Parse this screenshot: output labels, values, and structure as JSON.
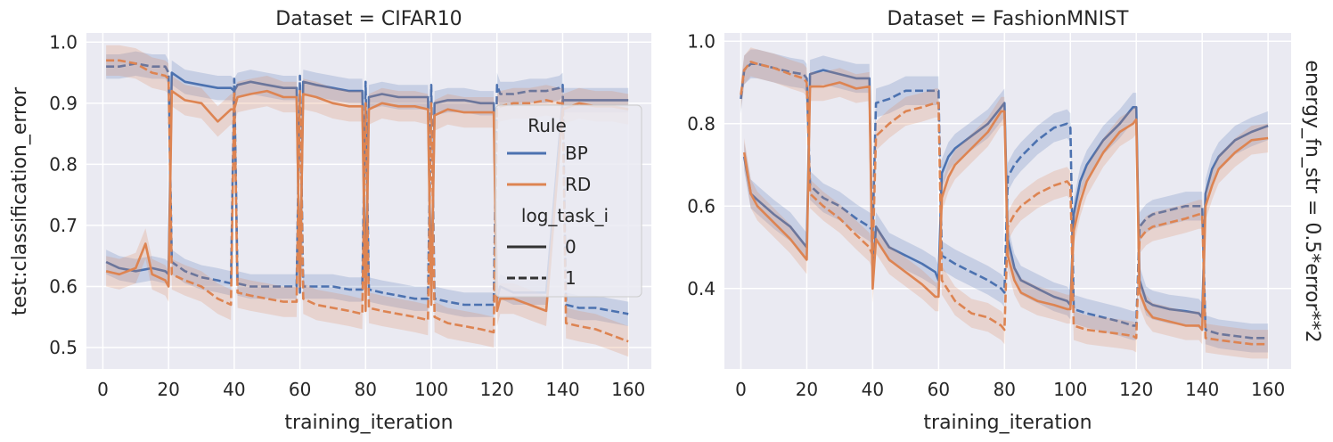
{
  "figure": {
    "ylabel": "test:classification_error",
    "row_label": "energy_fn_str = 0.5*error**2",
    "colors": {
      "BP": "#4c72b0",
      "RD": "#dd8452",
      "background": "#eaeaf2",
      "grid": "#ffffff"
    }
  },
  "legend": {
    "hue_title": "Rule",
    "hue_items": [
      "BP",
      "RD"
    ],
    "style_title": "log_task_i",
    "style_items": [
      "0",
      "1"
    ]
  },
  "chart_data": [
    {
      "type": "line",
      "title": "Dataset = CIFAR10",
      "xlabel": "training_iteration",
      "ylabel": "test:classification_error",
      "xlim": [
        -5,
        167
      ],
      "ylim": [
        0.465,
        1.015
      ],
      "xticks": [
        0,
        20,
        40,
        60,
        80,
        100,
        120,
        140,
        160
      ],
      "yticks": [
        0.5,
        0.6,
        0.7,
        0.8,
        0.9,
        1.0
      ],
      "ytick_labels": [
        "0.5",
        "0.6",
        "0.7",
        "0.8",
        "0.9",
        "1.0"
      ],
      "grid": true,
      "legend_position": "center-right",
      "series": [
        {
          "rule": "BP",
          "log_task_i": "0",
          "x": [
            1,
            5,
            10,
            15,
            19,
            20,
            21,
            25,
            30,
            35,
            39,
            40,
            41,
            45,
            50,
            55,
            59,
            60,
            61,
            65,
            70,
            75,
            79,
            80,
            81,
            85,
            90,
            95,
            99,
            100,
            101,
            105,
            110,
            115,
            119,
            120,
            121,
            125,
            130,
            135,
            140,
            145,
            150,
            155,
            160
          ],
          "y": [
            0.64,
            0.63,
            0.625,
            0.63,
            0.625,
            0.62,
            0.95,
            0.935,
            0.93,
            0.925,
            0.925,
            0.92,
            0.93,
            0.935,
            0.93,
            0.925,
            0.925,
            0.59,
            0.935,
            0.93,
            0.925,
            0.92,
            0.92,
            0.59,
            0.91,
            0.915,
            0.91,
            0.91,
            0.91,
            0.58,
            0.9,
            0.905,
            0.905,
            0.9,
            0.9,
            0.58,
            0.6,
            0.59,
            0.59,
            0.59,
            0.905,
            0.905,
            0.905,
            0.905,
            0.905
          ],
          "band": 0.02
        },
        {
          "rule": "BP",
          "log_task_i": "1",
          "x": [
            1,
            5,
            10,
            15,
            19,
            20,
            21,
            25,
            30,
            35,
            39,
            40,
            41,
            45,
            50,
            55,
            59,
            60,
            61,
            65,
            70,
            75,
            79,
            80,
            81,
            85,
            90,
            95,
            99,
            100,
            101,
            105,
            110,
            115,
            119,
            120,
            121,
            125,
            130,
            135,
            139,
            140,
            141,
            145,
            150,
            155,
            160
          ],
          "y": [
            0.96,
            0.96,
            0.965,
            0.96,
            0.96,
            0.95,
            0.64,
            0.625,
            0.615,
            0.61,
            0.605,
            0.94,
            0.605,
            0.6,
            0.6,
            0.6,
            0.6,
            0.945,
            0.6,
            0.6,
            0.6,
            0.595,
            0.595,
            0.935,
            0.595,
            0.59,
            0.585,
            0.58,
            0.58,
            0.93,
            0.58,
            0.575,
            0.57,
            0.57,
            0.57,
            0.93,
            0.915,
            0.915,
            0.92,
            0.92,
            0.925,
            0.93,
            0.57,
            0.565,
            0.565,
            0.56,
            0.555
          ],
          "band": 0.02
        },
        {
          "rule": "RD",
          "log_task_i": "0",
          "x": [
            1,
            5,
            10,
            13,
            15,
            19,
            20,
            21,
            25,
            30,
            35,
            39,
            40,
            41,
            45,
            50,
            55,
            59,
            60,
            61,
            65,
            70,
            75,
            79,
            80,
            81,
            85,
            90,
            95,
            99,
            100,
            101,
            105,
            110,
            115,
            119,
            120,
            121,
            125,
            130,
            135,
            140,
            145,
            150,
            155,
            160
          ],
          "y": [
            0.625,
            0.62,
            0.63,
            0.67,
            0.62,
            0.61,
            0.6,
            0.92,
            0.905,
            0.9,
            0.87,
            0.89,
            0.89,
            0.91,
            0.915,
            0.92,
            0.91,
            0.91,
            0.6,
            0.915,
            0.91,
            0.9,
            0.895,
            0.895,
            0.56,
            0.89,
            0.9,
            0.895,
            0.895,
            0.89,
            0.57,
            0.88,
            0.89,
            0.885,
            0.885,
            0.885,
            0.56,
            0.58,
            0.58,
            0.57,
            0.56,
            0.89,
            0.9,
            0.895,
            0.895,
            0.89
          ],
          "band": 0.025
        },
        {
          "rule": "RD",
          "log_task_i": "1",
          "x": [
            1,
            5,
            10,
            15,
            19,
            20,
            21,
            25,
            30,
            35,
            39,
            40,
            41,
            45,
            50,
            55,
            59,
            60,
            61,
            65,
            70,
            75,
            79,
            80,
            81,
            85,
            90,
            95,
            99,
            100,
            101,
            105,
            110,
            115,
            119,
            120,
            121,
            125,
            130,
            135,
            139,
            140,
            141,
            145,
            150,
            155,
            160
          ],
          "y": [
            0.97,
            0.97,
            0.965,
            0.95,
            0.945,
            0.94,
            0.62,
            0.61,
            0.6,
            0.58,
            0.57,
            0.92,
            0.59,
            0.585,
            0.58,
            0.575,
            0.575,
            0.92,
            0.58,
            0.57,
            0.565,
            0.56,
            0.555,
            0.9,
            0.565,
            0.56,
            0.555,
            0.55,
            0.545,
            0.9,
            0.55,
            0.54,
            0.535,
            0.53,
            0.525,
            0.89,
            0.895,
            0.9,
            0.9,
            0.905,
            0.9,
            0.9,
            0.54,
            0.535,
            0.53,
            0.52,
            0.51
          ],
          "band": 0.025
        }
      ]
    },
    {
      "type": "line",
      "title": "Dataset = FashionMNIST",
      "xlabel": "training_iteration",
      "ylabel": "",
      "xlim": [
        -5,
        167
      ],
      "ylim": [
        0.205,
        1.02
      ],
      "xticks": [
        0,
        20,
        40,
        60,
        80,
        100,
        120,
        140,
        160
      ],
      "yticks": [
        0.4,
        0.6,
        0.8,
        1.0
      ],
      "ytick_labels": [
        "0.4",
        "0.6",
        "0.8",
        "1.0"
      ],
      "grid": true,
      "series": [
        {
          "rule": "BP",
          "log_task_i": "0",
          "x": [
            1,
            3,
            5,
            10,
            15,
            19,
            20,
            21,
            25,
            30,
            35,
            39,
            40,
            41,
            45,
            50,
            55,
            59,
            60,
            61,
            63,
            65,
            70,
            75,
            79,
            80,
            81,
            83,
            85,
            90,
            95,
            99,
            100,
            101,
            103,
            105,
            110,
            115,
            119,
            120,
            121,
            123,
            125,
            130,
            135,
            139,
            140,
            141,
            143,
            145,
            150,
            155,
            160
          ],
          "y": [
            0.72,
            0.63,
            0.615,
            0.58,
            0.55,
            0.51,
            0.5,
            0.92,
            0.93,
            0.92,
            0.91,
            0.91,
            0.43,
            0.55,
            0.5,
            0.48,
            0.46,
            0.44,
            0.42,
            0.68,
            0.72,
            0.74,
            0.77,
            0.8,
            0.84,
            0.85,
            0.52,
            0.45,
            0.42,
            0.4,
            0.38,
            0.37,
            0.36,
            0.58,
            0.66,
            0.7,
            0.76,
            0.8,
            0.84,
            0.84,
            0.42,
            0.37,
            0.36,
            0.35,
            0.345,
            0.34,
            0.33,
            0.63,
            0.69,
            0.72,
            0.76,
            0.78,
            0.795
          ],
          "band": 0.035
        },
        {
          "rule": "BP",
          "log_task_i": "1",
          "x": [
            0,
            1,
            3,
            5,
            10,
            15,
            19,
            20,
            21,
            25,
            30,
            35,
            39,
            40,
            41,
            45,
            50,
            55,
            59,
            60,
            61,
            65,
            70,
            75,
            79,
            80,
            81,
            83,
            85,
            90,
            95,
            99,
            100,
            101,
            105,
            110,
            115,
            119,
            120,
            121,
            123,
            125,
            130,
            135,
            139,
            140,
            141,
            145,
            150,
            155,
            160
          ],
          "y": [
            0.86,
            0.93,
            0.945,
            0.945,
            0.935,
            0.925,
            0.92,
            0.91,
            0.65,
            0.62,
            0.6,
            0.57,
            0.55,
            0.54,
            0.85,
            0.86,
            0.88,
            0.88,
            0.88,
            0.88,
            0.48,
            0.46,
            0.44,
            0.42,
            0.4,
            0.39,
            0.67,
            0.7,
            0.72,
            0.76,
            0.79,
            0.8,
            0.79,
            0.35,
            0.34,
            0.33,
            0.32,
            0.31,
            0.31,
            0.55,
            0.57,
            0.58,
            0.59,
            0.6,
            0.6,
            0.6,
            0.3,
            0.29,
            0.285,
            0.28,
            0.28
          ],
          "band": 0.035
        },
        {
          "rule": "RD",
          "log_task_i": "0",
          "x": [
            1,
            3,
            5,
            10,
            15,
            19,
            20,
            21,
            25,
            30,
            35,
            39,
            40,
            41,
            45,
            50,
            55,
            59,
            60,
            61,
            63,
            65,
            70,
            75,
            79,
            80,
            81,
            83,
            85,
            90,
            95,
            99,
            100,
            101,
            103,
            105,
            110,
            115,
            119,
            120,
            121,
            123,
            125,
            130,
            135,
            139,
            140,
            141,
            143,
            145,
            150,
            155,
            160
          ],
          "y": [
            0.73,
            0.63,
            0.6,
            0.56,
            0.52,
            0.48,
            0.47,
            0.89,
            0.89,
            0.9,
            0.885,
            0.89,
            0.4,
            0.52,
            0.47,
            0.44,
            0.41,
            0.38,
            0.38,
            0.62,
            0.67,
            0.7,
            0.74,
            0.78,
            0.83,
            0.83,
            0.48,
            0.42,
            0.39,
            0.37,
            0.36,
            0.35,
            0.35,
            0.54,
            0.61,
            0.66,
            0.73,
            0.78,
            0.8,
            0.81,
            0.39,
            0.35,
            0.33,
            0.32,
            0.31,
            0.31,
            0.3,
            0.6,
            0.65,
            0.69,
            0.73,
            0.76,
            0.765
          ],
          "band": 0.035
        },
        {
          "rule": "RD",
          "log_task_i": "1",
          "x": [
            0,
            1,
            3,
            5,
            10,
            15,
            19,
            20,
            21,
            25,
            30,
            35,
            39,
            40,
            41,
            45,
            50,
            55,
            59,
            60,
            61,
            65,
            70,
            75,
            79,
            80,
            81,
            83,
            85,
            90,
            95,
            99,
            100,
            101,
            105,
            110,
            115,
            119,
            120,
            121,
            123,
            125,
            130,
            135,
            139,
            140,
            141,
            145,
            150,
            155,
            160
          ],
          "y": [
            0.87,
            0.93,
            0.95,
            0.945,
            0.935,
            0.92,
            0.91,
            0.9,
            0.63,
            0.6,
            0.57,
            0.53,
            0.5,
            0.48,
            0.77,
            0.8,
            0.83,
            0.84,
            0.85,
            0.85,
            0.42,
            0.37,
            0.34,
            0.33,
            0.31,
            0.3,
            0.55,
            0.58,
            0.6,
            0.63,
            0.65,
            0.66,
            0.65,
            0.31,
            0.3,
            0.295,
            0.29,
            0.285,
            0.28,
            0.52,
            0.54,
            0.55,
            0.56,
            0.57,
            0.58,
            0.58,
            0.28,
            0.275,
            0.27,
            0.265,
            0.265
          ],
          "band": 0.035
        }
      ]
    }
  ]
}
